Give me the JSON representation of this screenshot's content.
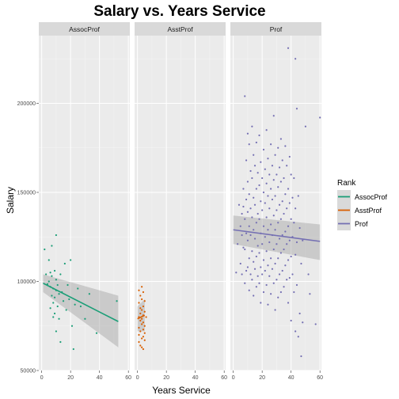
{
  "chart_data": {
    "type": "scatter",
    "title": "Salary vs. Years Service",
    "xlabel": "Years Service",
    "ylabel": "Salary",
    "xlim": [
      -2,
      61
    ],
    "ylim": [
      50000,
      238000
    ],
    "x_ticks": [
      0,
      20,
      40,
      60
    ],
    "x_tick_labels": [
      "0",
      "20",
      "40",
      "60"
    ],
    "y_ticks": [
      50000,
      100000,
      150000,
      200000
    ],
    "y_tick_labels": [
      "50000",
      "100000",
      "150000",
      "200000"
    ],
    "grid": true,
    "legend": {
      "title": "Rank",
      "placement": "right",
      "entries": [
        "AssocProf",
        "AsstProf",
        "Prof"
      ]
    },
    "facets": [
      {
        "name": "AssocProf",
        "color": "#1B9E77",
        "fit": {
          "x": [
            1,
            53
          ],
          "y": [
            99000,
            77500
          ],
          "ci_upper": [
            104000,
            92000
          ],
          "ci_lower": [
            94000,
            63000
          ]
        },
        "points": [
          [
            2,
            118000
          ],
          [
            3,
            104000
          ],
          [
            4,
            98500
          ],
          [
            5,
            112000
          ],
          [
            5,
            100000
          ],
          [
            6,
            97000
          ],
          [
            6,
            105000
          ],
          [
            6,
            85000
          ],
          [
            7,
            103000
          ],
          [
            7,
            92000
          ],
          [
            7,
            120000
          ],
          [
            8,
            96000
          ],
          [
            8,
            88000
          ],
          [
            8,
            80000
          ],
          [
            9,
            106000
          ],
          [
            9,
            91000
          ],
          [
            9,
            82000
          ],
          [
            10,
            101000
          ],
          [
            10,
            95000
          ],
          [
            10,
            126000
          ],
          [
            10,
            72000
          ],
          [
            11,
            98000
          ],
          [
            11,
            86000
          ],
          [
            12,
            93000
          ],
          [
            12,
            79000
          ],
          [
            13,
            104000
          ],
          [
            13,
            66000
          ],
          [
            14,
            94000
          ],
          [
            15,
            89000
          ],
          [
            16,
            110000
          ],
          [
            17,
            84000
          ],
          [
            18,
            98000
          ],
          [
            19,
            90000
          ],
          [
            20,
            112000
          ],
          [
            21,
            75000
          ],
          [
            22,
            62000
          ],
          [
            23,
            87000
          ],
          [
            25,
            96000
          ],
          [
            27,
            86000
          ],
          [
            30,
            79000
          ],
          [
            33,
            93000
          ],
          [
            38,
            71000
          ],
          [
            52,
            89000
          ]
        ]
      },
      {
        "name": "AsstProf",
        "color": "#D95F02",
        "fit": {
          "x": [
            0,
            5
          ],
          "y": [
            79000,
            81000
          ],
          "ci_upper": [
            86000,
            90000
          ],
          "ci_lower": [
            72000,
            72000
          ]
        },
        "points": [
          [
            1,
            95000
          ],
          [
            1,
            88000
          ],
          [
            1,
            80000
          ],
          [
            1,
            74000
          ],
          [
            1,
            70000
          ],
          [
            1,
            66000
          ],
          [
            2,
            92000
          ],
          [
            2,
            85000
          ],
          [
            2,
            82000
          ],
          [
            2,
            78000
          ],
          [
            2,
            72000
          ],
          [
            2,
            64000
          ],
          [
            3,
            97000
          ],
          [
            3,
            90000
          ],
          [
            3,
            84000
          ],
          [
            3,
            79000
          ],
          [
            3,
            76000
          ],
          [
            3,
            68000
          ],
          [
            3,
            63000
          ],
          [
            4,
            94000
          ],
          [
            4,
            86000
          ],
          [
            4,
            81000
          ],
          [
            4,
            77000
          ],
          [
            4,
            73000
          ],
          [
            4,
            69000
          ],
          [
            4,
            62000
          ],
          [
            5,
            89000
          ],
          [
            5,
            83000
          ],
          [
            5,
            75000
          ],
          [
            5,
            71000
          ],
          [
            5,
            67000
          ],
          [
            6,
            80000
          ]
        ]
      },
      {
        "name": "Prof",
        "color": "#7570B3",
        "fit": {
          "x": [
            0,
            60
          ],
          "y": [
            129000,
            122500
          ],
          "ci_upper": [
            137000,
            132000
          ],
          "ci_lower": [
            121000,
            112000
          ]
        },
        "points": [
          [
            2,
            105000
          ],
          [
            3,
            121000
          ],
          [
            4,
            143000
          ],
          [
            5,
            131000
          ],
          [
            5,
            110000
          ],
          [
            6,
            138000
          ],
          [
            6,
            126000
          ],
          [
            6,
            104000
          ],
          [
            7,
            152000
          ],
          [
            7,
            119000
          ],
          [
            7,
            142000
          ],
          [
            8,
            204000
          ],
          [
            8,
            135000
          ],
          [
            8,
            118000
          ],
          [
            8,
            99000
          ],
          [
            9,
            168000
          ],
          [
            9,
            146000
          ],
          [
            9,
            127000
          ],
          [
            9,
            106000
          ],
          [
            10,
            183000
          ],
          [
            10,
            156000
          ],
          [
            10,
            139000
          ],
          [
            10,
            123000
          ],
          [
            10,
            108000
          ],
          [
            11,
            177000
          ],
          [
            11,
            149000
          ],
          [
            11,
            131000
          ],
          [
            11,
            113000
          ],
          [
            11,
            95000
          ],
          [
            12,
            162000
          ],
          [
            12,
            141000
          ],
          [
            12,
            126000
          ],
          [
            12,
            104000
          ],
          [
            13,
            187000
          ],
          [
            13,
            158000
          ],
          [
            13,
            136000
          ],
          [
            13,
            117000
          ],
          [
            13,
            101000
          ],
          [
            14,
            171000
          ],
          [
            14,
            147000
          ],
          [
            14,
            129000
          ],
          [
            14,
            111000
          ],
          [
            14,
            92000
          ],
          [
            15,
            165000
          ],
          [
            15,
            143000
          ],
          [
            15,
            124000
          ],
          [
            15,
            107000
          ],
          [
            16,
            178000
          ],
          [
            16,
            152000
          ],
          [
            16,
            133000
          ],
          [
            16,
            114000
          ],
          [
            16,
            97000
          ],
          [
            17,
            161000
          ],
          [
            17,
            138000
          ],
          [
            17,
            120000
          ],
          [
            17,
            103000
          ],
          [
            18,
            182000
          ],
          [
            18,
            154000
          ],
          [
            18,
            135000
          ],
          [
            18,
            116000
          ],
          [
            18,
            99000
          ],
          [
            19,
            167000
          ],
          [
            19,
            145000
          ],
          [
            19,
            127000
          ],
          [
            19,
            108000
          ],
          [
            19,
            88000
          ],
          [
            20,
            158000
          ],
          [
            20,
            140000
          ],
          [
            20,
            121000
          ],
          [
            20,
            104000
          ],
          [
            21,
            174000
          ],
          [
            21,
            150000
          ],
          [
            21,
            131000
          ],
          [
            21,
            112000
          ],
          [
            21,
            94000
          ],
          [
            22,
            163000
          ],
          [
            22,
            144000
          ],
          [
            22,
            125000
          ],
          [
            22,
            106000
          ],
          [
            23,
            185000
          ],
          [
            23,
            155000
          ],
          [
            23,
            136000
          ],
          [
            23,
            117000
          ],
          [
            23,
            98000
          ],
          [
            24,
            169000
          ],
          [
            24,
            148000
          ],
          [
            24,
            129000
          ],
          [
            24,
            109000
          ],
          [
            24,
            87000
          ],
          [
            25,
            160000
          ],
          [
            25,
            141000
          ],
          [
            25,
            122000
          ],
          [
            25,
            103000
          ],
          [
            26,
            177000
          ],
          [
            26,
            152000
          ],
          [
            26,
            132000
          ],
          [
            26,
            113000
          ],
          [
            26,
            93000
          ],
          [
            27,
            165000
          ],
          [
            27,
            146000
          ],
          [
            27,
            126000
          ],
          [
            27,
            107000
          ],
          [
            28,
            193000
          ],
          [
            28,
            157000
          ],
          [
            28,
            137000
          ],
          [
            28,
            118000
          ],
          [
            28,
            99000
          ],
          [
            29,
            171000
          ],
          [
            29,
            148000
          ],
          [
            29,
            129000
          ],
          [
            29,
            110000
          ],
          [
            29,
            84000
          ],
          [
            30,
            160000
          ],
          [
            30,
            140000
          ],
          [
            30,
            121000
          ],
          [
            30,
            101000
          ],
          [
            31,
            175000
          ],
          [
            31,
            153000
          ],
          [
            31,
            133000
          ],
          [
            31,
            113000
          ],
          [
            31,
            91000
          ],
          [
            32,
            164000
          ],
          [
            32,
            143000
          ],
          [
            32,
            124000
          ],
          [
            32,
            104000
          ],
          [
            33,
            180000
          ],
          [
            33,
            156000
          ],
          [
            33,
            135000
          ],
          [
            33,
            116000
          ],
          [
            33,
            94000
          ],
          [
            34,
            168000
          ],
          [
            34,
            145000
          ],
          [
            34,
            126000
          ],
          [
            34,
            106000
          ],
          [
            35,
            158000
          ],
          [
            35,
            138000
          ],
          [
            35,
            118000
          ],
          [
            35,
            97000
          ],
          [
            36,
            176000
          ],
          [
            36,
            149000
          ],
          [
            36,
            128000
          ],
          [
            36,
            109000
          ],
          [
            37,
            165000
          ],
          [
            37,
            141000
          ],
          [
            37,
            121000
          ],
          [
            37,
            101000
          ],
          [
            38,
            231000
          ],
          [
            38,
            152000
          ],
          [
            38,
            131000
          ],
          [
            38,
            112000
          ],
          [
            38,
            88000
          ],
          [
            39,
            170000
          ],
          [
            39,
            144000
          ],
          [
            39,
            123000
          ],
          [
            39,
            102000
          ],
          [
            40,
            160000
          ],
          [
            40,
            135000
          ],
          [
            40,
            114000
          ],
          [
            40,
            78000
          ],
          [
            41,
            147000
          ],
          [
            41,
            125000
          ],
          [
            41,
            104000
          ],
          [
            42,
            158000
          ],
          [
            42,
            133000
          ],
          [
            42,
            94000
          ],
          [
            43,
            225000
          ],
          [
            43,
            141000
          ],
          [
            43,
            115000
          ],
          [
            43,
            72000
          ],
          [
            44,
            197000
          ],
          [
            44,
            122000
          ],
          [
            44,
            98000
          ],
          [
            45,
            148000
          ],
          [
            45,
            69000
          ],
          [
            46,
            130000
          ],
          [
            46,
            82000
          ],
          [
            47,
            110000
          ],
          [
            47,
            58000
          ],
          [
            48,
            123000
          ],
          [
            48,
            77000
          ],
          [
            50,
            187000
          ],
          [
            52,
            104000
          ],
          [
            53,
            93000
          ],
          [
            57,
            76000
          ],
          [
            60,
            192000
          ]
        ]
      }
    ]
  }
}
